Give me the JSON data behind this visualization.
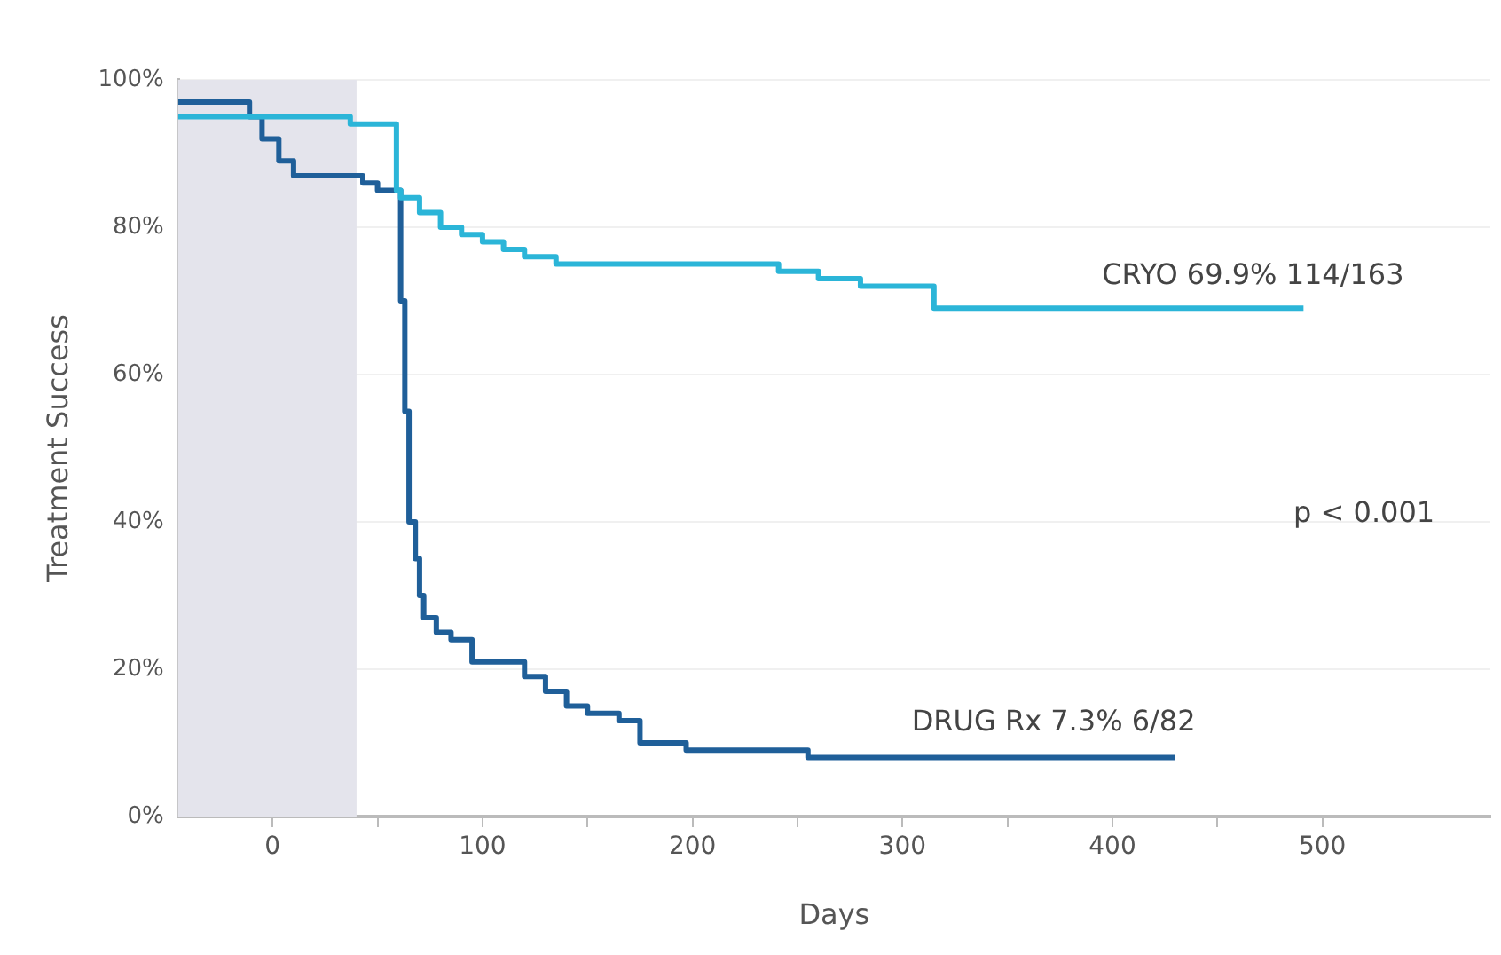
{
  "chart_data": {
    "type": "step",
    "xlabel": "Days",
    "ylabel": "Treatment Success",
    "xlim": [
      -45,
      580
    ],
    "ylim": [
      0,
      100
    ],
    "xticks": [
      0,
      {
        "value": 50,
        "label": null
      },
      100,
      {
        "value": 150,
        "label": null
      },
      200,
      {
        "value": 250,
        "label": null
      },
      300,
      {
        "value": 350,
        "label": null
      },
      400,
      {
        "value": 450,
        "label": null
      },
      500
    ],
    "yticks": [
      {
        "value": 0,
        "label": "0%"
      },
      {
        "value": 20,
        "label": "20%"
      },
      {
        "value": 40,
        "label": "40%"
      },
      {
        "value": 60,
        "label": "60%"
      },
      {
        "value": 80,
        "label": "80%"
      },
      {
        "value": 100,
        "label": "100%"
      }
    ],
    "grid": "y",
    "legend": false,
    "line_style": "solid",
    "marker": "none",
    "bands": [
      {
        "axis": "x",
        "from": -45,
        "to": 40,
        "color": "#e4e4ec"
      }
    ],
    "series": [
      {
        "color": "#2bb5d8",
        "x": [
          -45,
          37,
          59,
          61,
          70,
          80,
          90,
          100,
          110,
          120,
          135,
          148,
          241,
          260,
          280,
          315,
          387,
          491
        ],
        "values": [
          95,
          95,
          94,
          85,
          84,
          82,
          80,
          79,
          78,
          77,
          76,
          75,
          75,
          74,
          73,
          72,
          69,
          69
        ]
      },
      {
        "color": "#1f5f99",
        "x": [
          -45,
          -11,
          -5,
          3,
          10,
          19,
          43,
          50,
          61,
          63,
          65,
          68,
          70,
          72,
          78,
          85,
          95,
          120,
          130,
          140,
          150,
          165,
          175,
          197,
          255,
          275,
          430
        ],
        "values": [
          97,
          97,
          95,
          92,
          89,
          87,
          87,
          86,
          85,
          70,
          55,
          40,
          35,
          30,
          27,
          25,
          24,
          21,
          19,
          17,
          15,
          14,
          13,
          10,
          9,
          8,
          8
        ]
      }
    ],
    "annotations": [
      "CRYO 69.9% 114/163",
      "DRUG Rx 7.3% 6/82",
      "p < 0.001"
    ]
  }
}
